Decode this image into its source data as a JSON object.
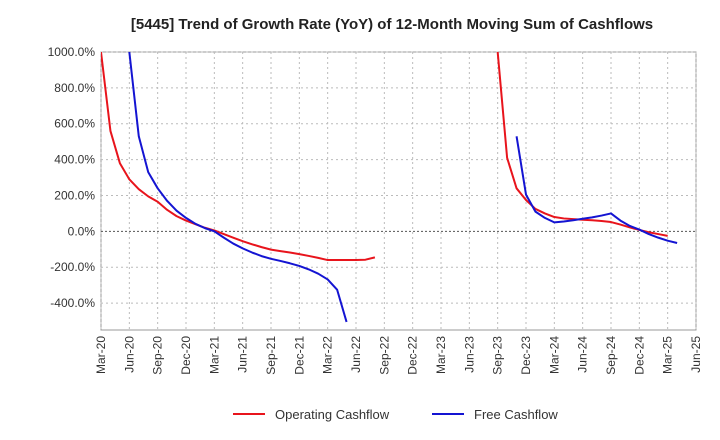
{
  "chart_data": {
    "type": "line",
    "title": "[5445]  Trend of Growth Rate (YoY) of 12-Month Moving Sum of Cashflows",
    "xlabel": "",
    "ylabel": "",
    "ylim": [
      -550,
      1000
    ],
    "yticks": [
      1000,
      800,
      600,
      400,
      200,
      0,
      -200,
      -400
    ],
    "ytick_labels": [
      "1000.0%",
      "800.0%",
      "600.0%",
      "400.0%",
      "200.0%",
      "0.0%",
      "-200.0%",
      "-400.0%"
    ],
    "xticks": [
      "Mar-20",
      "Jun-20",
      "Sep-20",
      "Dec-20",
      "Mar-21",
      "Jun-21",
      "Sep-21",
      "Dec-21",
      "Mar-22",
      "Jun-22",
      "Sep-22",
      "Dec-22",
      "Mar-23",
      "Jun-23",
      "Sep-23",
      "Dec-23",
      "Mar-24",
      "Jun-24",
      "Sep-24",
      "Dec-24",
      "Mar-25",
      "Jun-25"
    ],
    "grid": true,
    "zero_line_dashed": true,
    "legend_position": "bottom",
    "series": [
      {
        "name": "Operating Cashflow",
        "color": "#e8141c",
        "points": [
          {
            "x": "Mar-20",
            "y": 1000
          },
          {
            "x": "Apr-20",
            "y": 560
          },
          {
            "x": "May-20",
            "y": 380
          },
          {
            "x": "Jun-20",
            "y": 290
          },
          {
            "x": "Jul-20",
            "y": 235
          },
          {
            "x": "Aug-20",
            "y": 195
          },
          {
            "x": "Sep-20",
            "y": 165
          },
          {
            "x": "Oct-20",
            "y": 120
          },
          {
            "x": "Nov-20",
            "y": 85
          },
          {
            "x": "Dec-20",
            "y": 60
          },
          {
            "x": "Jan-21",
            "y": 40
          },
          {
            "x": "Feb-21",
            "y": 20
          },
          {
            "x": "Mar-21",
            "y": 5
          },
          {
            "x": "Apr-21",
            "y": -15
          },
          {
            "x": "May-21",
            "y": -35
          },
          {
            "x": "Jun-21",
            "y": -55
          },
          {
            "x": "Jul-21",
            "y": -72
          },
          {
            "x": "Aug-21",
            "y": -88
          },
          {
            "x": "Sep-21",
            "y": -102
          },
          {
            "x": "Oct-21",
            "y": -110
          },
          {
            "x": "Nov-21",
            "y": -118
          },
          {
            "x": "Dec-21",
            "y": -127
          },
          {
            "x": "Jan-22",
            "y": -137
          },
          {
            "x": "Feb-22",
            "y": -148
          },
          {
            "x": "Mar-22",
            "y": -160
          },
          {
            "x": "Apr-22",
            "y": -160
          },
          {
            "x": "May-22",
            "y": -160
          },
          {
            "x": "Jun-22",
            "y": -160
          },
          {
            "x": "Jul-22",
            "y": -158
          },
          {
            "x": "Aug-22",
            "y": -145
          },
          {
            "x": "Sep-23",
            "y": 1000
          },
          {
            "x": "Oct-23",
            "y": 410
          },
          {
            "x": "Nov-23",
            "y": 240
          },
          {
            "x": "Dec-23",
            "y": 175
          },
          {
            "x": "Jan-24",
            "y": 125
          },
          {
            "x": "Feb-24",
            "y": 100
          },
          {
            "x": "Mar-24",
            "y": 80
          },
          {
            "x": "Apr-24",
            "y": 72
          },
          {
            "x": "May-24",
            "y": 68
          },
          {
            "x": "Jun-24",
            "y": 65
          },
          {
            "x": "Jul-24",
            "y": 62
          },
          {
            "x": "Aug-24",
            "y": 58
          },
          {
            "x": "Sep-24",
            "y": 52
          },
          {
            "x": "Oct-24",
            "y": 38
          },
          {
            "x": "Nov-24",
            "y": 22
          },
          {
            "x": "Dec-24",
            "y": 8
          },
          {
            "x": "Jan-25",
            "y": -5
          },
          {
            "x": "Feb-25",
            "y": -15
          },
          {
            "x": "Mar-25",
            "y": -25
          }
        ]
      },
      {
        "name": "Free Cashflow",
        "color": "#1414d2",
        "points": [
          {
            "x": "Jun-20",
            "y": 1000
          },
          {
            "x": "Jul-20",
            "y": 530
          },
          {
            "x": "Aug-20",
            "y": 330
          },
          {
            "x": "Sep-20",
            "y": 240
          },
          {
            "x": "Oct-20",
            "y": 170
          },
          {
            "x": "Nov-20",
            "y": 115
          },
          {
            "x": "Dec-20",
            "y": 75
          },
          {
            "x": "Jan-21",
            "y": 42
          },
          {
            "x": "Feb-21",
            "y": 18
          },
          {
            "x": "Mar-21",
            "y": 0
          },
          {
            "x": "Apr-21",
            "y": -35
          },
          {
            "x": "May-21",
            "y": -68
          },
          {
            "x": "Jun-21",
            "y": -95
          },
          {
            "x": "Jul-21",
            "y": -118
          },
          {
            "x": "Aug-21",
            "y": -138
          },
          {
            "x": "Sep-21",
            "y": -153
          },
          {
            "x": "Oct-21",
            "y": -165
          },
          {
            "x": "Nov-21",
            "y": -178
          },
          {
            "x": "Dec-21",
            "y": -193
          },
          {
            "x": "Jan-22",
            "y": -212
          },
          {
            "x": "Feb-22",
            "y": -236
          },
          {
            "x": "Mar-22",
            "y": -268
          },
          {
            "x": "Apr-22",
            "y": -325
          },
          {
            "x": "May-22",
            "y": -505
          },
          {
            "x": "Nov-23",
            "y": 530
          },
          {
            "x": "Dec-23",
            "y": 205
          },
          {
            "x": "Jan-24",
            "y": 110
          },
          {
            "x": "Feb-24",
            "y": 75
          },
          {
            "x": "Mar-24",
            "y": 50
          },
          {
            "x": "Apr-24",
            "y": 55
          },
          {
            "x": "May-24",
            "y": 62
          },
          {
            "x": "Jun-24",
            "y": 70
          },
          {
            "x": "Jul-24",
            "y": 78
          },
          {
            "x": "Aug-24",
            "y": 88
          },
          {
            "x": "Sep-24",
            "y": 100
          },
          {
            "x": "Oct-24",
            "y": 60
          },
          {
            "x": "Nov-24",
            "y": 30
          },
          {
            "x": "Dec-24",
            "y": 10
          },
          {
            "x": "Jan-25",
            "y": -15
          },
          {
            "x": "Feb-25",
            "y": -35
          },
          {
            "x": "Mar-25",
            "y": -52
          },
          {
            "x": "Apr-25",
            "y": -65
          }
        ]
      }
    ]
  }
}
